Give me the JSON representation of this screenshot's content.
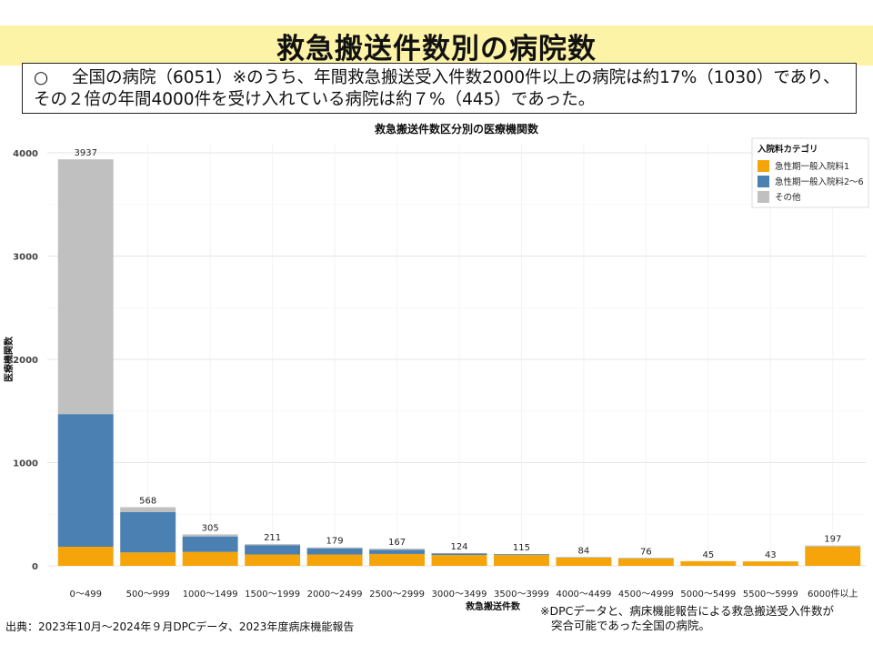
{
  "header": {
    "title": "救急搬送件数別の病院数"
  },
  "note": {
    "bullet": "○",
    "text": "全国の病院（6051）※のうち、年間救急搬送受入件数2000件以上の病院は約17%（1030）であり、その２倍の年間4000件を受け入れている病院は約７%（445）であった。"
  },
  "source": "出典：2023年10月～2024年９月DPCデータ、2023年度病床機能報告",
  "footnote": {
    "line1": "※DPCデータと、病床機能報告による救急搬送受入件数が",
    "line2": "突合可能であった全国の病院。"
  },
  "chart_data": {
    "type": "bar",
    "stacked": true,
    "title": "救急搬送件数区分別の医療機関数",
    "xlabel": "救急搬送件数",
    "ylabel": "医療機関数",
    "ylim": [
      0,
      4000
    ],
    "yticks": [
      0,
      1000,
      2000,
      3000,
      4000
    ],
    "grid": true,
    "legend": {
      "title": "入院料カテゴリ",
      "position": "top-right"
    },
    "categories": [
      "0～499",
      "500～999",
      "1000～1499",
      "1500～1999",
      "2000～2499",
      "2500～2999",
      "3000～3499",
      "3500～3999",
      "4000～4499",
      "4500～4999",
      "5000～5499",
      "5500～5999",
      "6000件以上"
    ],
    "totals": [
      3937,
      568,
      305,
      211,
      179,
      167,
      124,
      115,
      84,
      76,
      45,
      43,
      197
    ],
    "series": [
      {
        "name": "急性期一般入院料1",
        "color": "#f5a50a",
        "values": [
          185,
          130,
          135,
          110,
          110,
          115,
          105,
          105,
          80,
          72,
          45,
          43,
          185
        ]
      },
      {
        "name": "急性期一般入院料2～6",
        "color": "#4a80b2",
        "values": [
          1285,
          392,
          150,
          91,
          60,
          40,
          15,
          8,
          3,
          3,
          0,
          0,
          0
        ]
      },
      {
        "name": "その他",
        "color": "#c0c0c0",
        "values": [
          2467,
          46,
          20,
          10,
          9,
          12,
          4,
          2,
          1,
          1,
          0,
          0,
          12
        ]
      }
    ]
  }
}
